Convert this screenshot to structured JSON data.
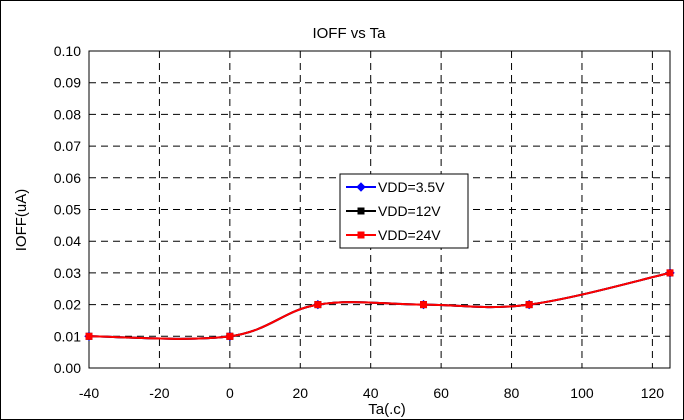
{
  "chart_data": {
    "type": "line",
    "title": "IOFF vs Ta",
    "xlabel": "Ta(.c)",
    "ylabel": "IOFF(uA)",
    "xlim": [
      -40,
      125
    ],
    "ylim": [
      0,
      0.1
    ],
    "xticks": [
      "-40",
      "-20",
      "0",
      "20",
      "40",
      "60",
      "80",
      "100",
      "120"
    ],
    "xtick_values": [
      -40,
      -20,
      0,
      20,
      40,
      60,
      80,
      100,
      120
    ],
    "yticks": [
      "0.00",
      "0.01",
      "0.02",
      "0.03",
      "0.04",
      "0.05",
      "0.06",
      "0.07",
      "0.08",
      "0.09",
      "0.10"
    ],
    "ytick_values": [
      0,
      0.01,
      0.02,
      0.03,
      0.04,
      0.05,
      0.06,
      0.07,
      0.08,
      0.09,
      0.1
    ],
    "grid": true,
    "legend_position": "center",
    "series": [
      {
        "name": "VDD=3.5V",
        "color": "#0000FF",
        "marker": "diamond",
        "x": [
          -40,
          0,
          25,
          55,
          85,
          125
        ],
        "y": [
          0.01,
          0.01,
          0.02,
          0.02,
          0.02,
          0.03
        ]
      },
      {
        "name": "VDD=12V",
        "color": "#000000",
        "marker": "square",
        "x": [
          -40,
          0,
          25,
          55,
          85,
          125
        ],
        "y": [
          0.01,
          0.01,
          0.02,
          0.02,
          0.02,
          0.03
        ]
      },
      {
        "name": "VDD=24V",
        "color": "#FF0000",
        "marker": "square",
        "x": [
          -40,
          0,
          25,
          55,
          85,
          125
        ],
        "y": [
          0.01,
          0.01,
          0.02,
          0.02,
          0.02,
          0.03
        ]
      }
    ]
  }
}
